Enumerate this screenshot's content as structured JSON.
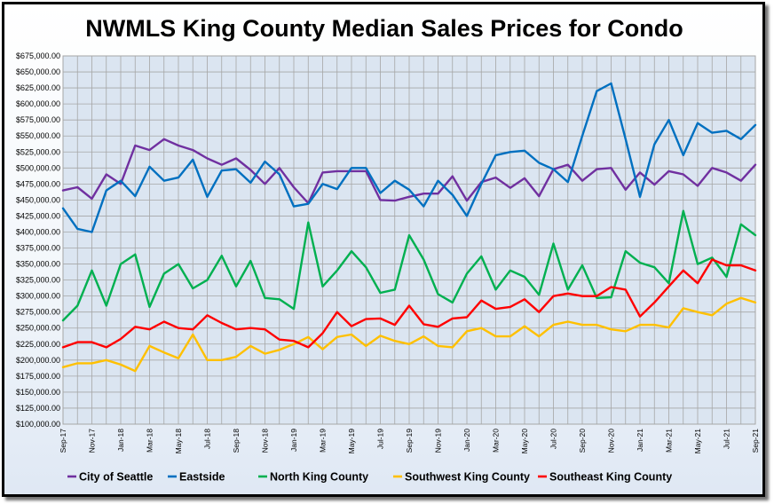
{
  "chart_data": {
    "type": "line",
    "title": "NWMLS King County Median Sales Prices for Condo",
    "xlabel": "",
    "ylabel": "",
    "ylim": [
      100000,
      675000
    ],
    "ytick_step": 25000,
    "grid": true,
    "legend_position": "bottom",
    "ytick_labels": [
      "$100,000.00",
      "$125,000.00",
      "$150,000.00",
      "$175,000.00",
      "$200,000.00",
      "$225,000.00",
      "$250,000.00",
      "$275,000.00",
      "$300,000.00",
      "$325,000.00",
      "$350,000.00",
      "$375,000.00",
      "$400,000.00",
      "$425,000.00",
      "$450,000.00",
      "$475,000.00",
      "$500,000.00",
      "$525,000.00",
      "$550,000.00",
      "$575,000.00",
      "$600,000.00",
      "$625,000.00",
      "$650,000.00",
      "$675,000.00"
    ],
    "x": [
      "Sep-17",
      "Oct-17",
      "Nov-17",
      "Dec-17",
      "Jan-18",
      "Feb-18",
      "Mar-18",
      "Apr-18",
      "May-18",
      "Jun-18",
      "Jul-18",
      "Aug-18",
      "Sep-18",
      "Oct-18",
      "Nov-18",
      "Dec-18",
      "Jan-19",
      "Feb-19",
      "Mar-19",
      "Apr-19",
      "May-19",
      "Jun-19",
      "Jul-19",
      "Aug-19",
      "Sep-19",
      "Oct-19",
      "Nov-19",
      "Dec-19",
      "Jan-20",
      "Feb-20",
      "Mar-20",
      "Apr-20",
      "May-20",
      "Jun-20",
      "Jul-20",
      "Aug-20",
      "Sep-20",
      "Oct-20",
      "Nov-20",
      "Dec-20",
      "Jan-21",
      "Feb-21",
      "Mar-21",
      "Apr-21",
      "May-21",
      "Jun-21",
      "Jul-21",
      "Aug-21",
      "Sep-21"
    ],
    "x_label_every": 2,
    "series": [
      {
        "name": "City of Seattle",
        "color": "#7030a0",
        "values": [
          465000,
          470000,
          452000,
          490000,
          475000,
          535000,
          528000,
          545000,
          535000,
          528000,
          515000,
          505000,
          515000,
          497000,
          475000,
          500000,
          470000,
          445000,
          493000,
          495000,
          495000,
          495000,
          450000,
          449000,
          455000,
          460000,
          460000,
          487000,
          449000,
          478000,
          485000,
          469000,
          484000,
          456000,
          498000,
          505000,
          480000,
          498000,
          500000,
          466000,
          493000,
          474000,
          495000,
          490000,
          472000,
          500000,
          493000,
          480000,
          505000
        ]
      },
      {
        "name": "Eastside",
        "color": "#0070c0",
        "values": [
          437000,
          405000,
          400000,
          465000,
          480000,
          456000,
          502000,
          480000,
          485000,
          513000,
          455000,
          496000,
          498000,
          477000,
          510000,
          490000,
          440000,
          444000,
          475000,
          467000,
          500000,
          500000,
          461000,
          480000,
          466000,
          440000,
          480000,
          458000,
          425000,
          475000,
          520000,
          525000,
          527000,
          508000,
          498000,
          478000,
          550000,
          620000,
          632000,
          545000,
          455000,
          537000,
          575000,
          520000,
          570000,
          555000,
          558000,
          545000,
          567000
        ]
      },
      {
        "name": "North King County",
        "color": "#00b050",
        "values": [
          262000,
          285000,
          340000,
          285000,
          350000,
          365000,
          283000,
          335000,
          350000,
          312000,
          325000,
          363000,
          315000,
          355000,
          297000,
          295000,
          280000,
          415000,
          315000,
          340000,
          370000,
          345000,
          305000,
          310000,
          395000,
          357000,
          303000,
          290000,
          335000,
          362000,
          310000,
          340000,
          330000,
          302000,
          382000,
          310000,
          348000,
          297000,
          298000,
          370000,
          352000,
          345000,
          320000,
          433000,
          350000,
          360000,
          330000,
          412000,
          395000
        ]
      },
      {
        "name": "Southwest King County",
        "color": "#ffc000",
        "values": [
          189000,
          195000,
          195000,
          200000,
          193000,
          183000,
          222000,
          212000,
          203000,
          240000,
          200000,
          200000,
          205000,
          222000,
          210000,
          216000,
          225000,
          236000,
          217000,
          236000,
          240000,
          222000,
          238000,
          230000,
          225000,
          237000,
          222000,
          220000,
          245000,
          250000,
          237000,
          237000,
          253000,
          237000,
          255000,
          260000,
          255000,
          255000,
          248000,
          245000,
          255000,
          255000,
          251000,
          281000,
          275000,
          270000,
          288000,
          297000,
          290000
        ]
      },
      {
        "name": "Southeast King County",
        "color": "#ff0000",
        "values": [
          220000,
          228000,
          228000,
          220000,
          233000,
          252000,
          248000,
          260000,
          250000,
          248000,
          270000,
          258000,
          248000,
          250000,
          248000,
          232000,
          230000,
          220000,
          242000,
          275000,
          253000,
          264000,
          265000,
          255000,
          285000,
          256000,
          252000,
          265000,
          267000,
          293000,
          280000,
          283000,
          295000,
          275000,
          300000,
          304000,
          300000,
          300000,
          314000,
          310000,
          268000,
          290000,
          315000,
          340000,
          320000,
          357000,
          348000,
          348000,
          340000
        ]
      }
    ]
  }
}
